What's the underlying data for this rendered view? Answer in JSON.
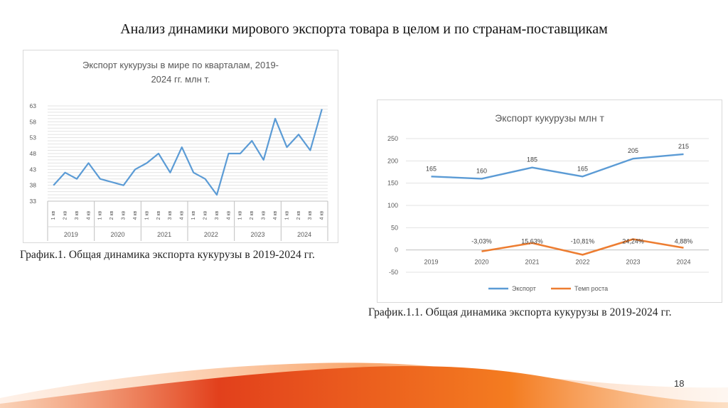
{
  "slide": {
    "title": "Анализ динамики мирового экспорта товара в целом и по странам-поставщикам",
    "caption1": "График.1. Общая динамика экспорта кукурузы в 2019-2024 гг.",
    "caption2": "График.1.1. Общая динамика экспорта кукурузы в 2019-2024 гг.",
    "page_number": "18",
    "colors": {
      "accent_orange": "#ed7d31",
      "line_blue": "#5b9bd5",
      "wave_red": "#e2401c"
    }
  },
  "chart_data": [
    {
      "type": "line",
      "title_line1": "Экспорт кукурузы в мире по кварталам, 2019-",
      "title_line2": "2024 гг. млн т.",
      "quarter_labels": [
        "1 кв",
        "2 кв",
        "3 кв",
        "4 кв",
        "1 кв",
        "2 кв",
        "3 кв",
        "4 кв",
        "1 кв",
        "2 кв",
        "3 кв",
        "4 кв",
        "1 кв",
        "2 кв",
        "3 кв",
        "4 кв",
        "1 кв",
        "2 кв",
        "3 кв",
        "4 кв",
        "1 кв",
        "2 кв",
        "3 кв",
        "4 кв"
      ],
      "year_labels": [
        "2019",
        "2020",
        "2021",
        "2022",
        "2023",
        "2024"
      ],
      "yticks": [
        "63",
        "58",
        "53",
        "48",
        "43",
        "38",
        "33"
      ],
      "ylim": [
        33,
        63
      ],
      "grid": true,
      "series": [
        {
          "color": "#5b9bd5",
          "values": [
            38,
            42,
            40,
            45,
            40,
            39,
            38,
            43,
            45,
            48,
            42,
            50,
            42,
            40,
            35,
            48,
            48,
            52,
            46,
            59,
            50,
            54,
            49,
            62
          ]
        }
      ]
    },
    {
      "type": "line",
      "title": "Экспорт кукурузы млн т",
      "categories": [
        "2019",
        "2020",
        "2021",
        "2022",
        "2023",
        "2024"
      ],
      "yticks": [
        "250",
        "200",
        "150",
        "100",
        "50",
        "0",
        "-50"
      ],
      "ylim": [
        -50,
        250
      ],
      "grid": true,
      "legend_position": "bottom",
      "series": [
        {
          "name": "Экспорт",
          "color": "#5b9bd5",
          "values": [
            165,
            160,
            185,
            165,
            205,
            215
          ],
          "labels": [
            "165",
            "160",
            "185",
            "165",
            "205",
            "215"
          ]
        },
        {
          "name": "Темп роста",
          "color": "#ed7d31",
          "values": [
            null,
            -3.03,
            15.63,
            -10.81,
            24.24,
            4.88
          ],
          "labels": [
            "",
            "-3,03%",
            "15,63%",
            "-10,81%",
            "24,24%",
            "4,88%"
          ]
        }
      ]
    }
  ]
}
